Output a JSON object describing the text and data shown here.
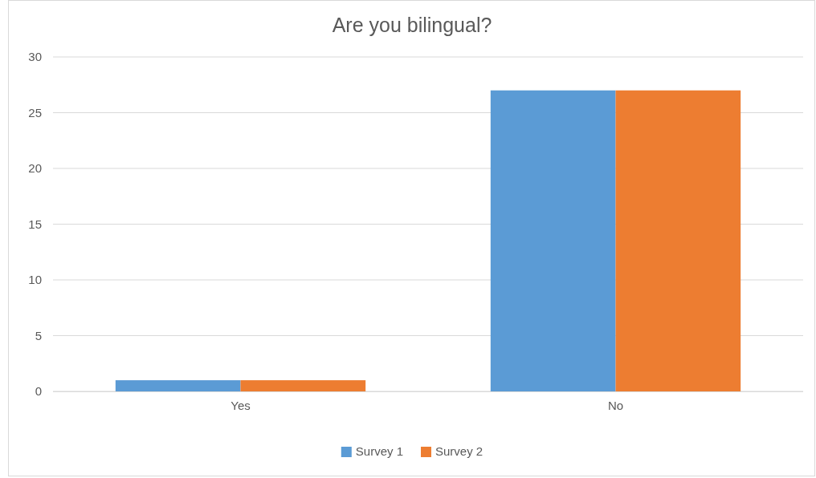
{
  "chart_data": {
    "type": "bar",
    "title": "Are you bilingual?",
    "categories": [
      "Yes",
      "No"
    ],
    "series": [
      {
        "name": "Survey 1",
        "color": "#5b9bd5",
        "values": [
          1,
          27
        ]
      },
      {
        "name": "Survey 2",
        "color": "#ed7d31",
        "values": [
          1,
          27
        ]
      }
    ],
    "ylim": [
      0,
      30
    ],
    "yticks": [
      0,
      5,
      10,
      15,
      20,
      25,
      30
    ],
    "grid": "y",
    "legend": "bottom"
  }
}
